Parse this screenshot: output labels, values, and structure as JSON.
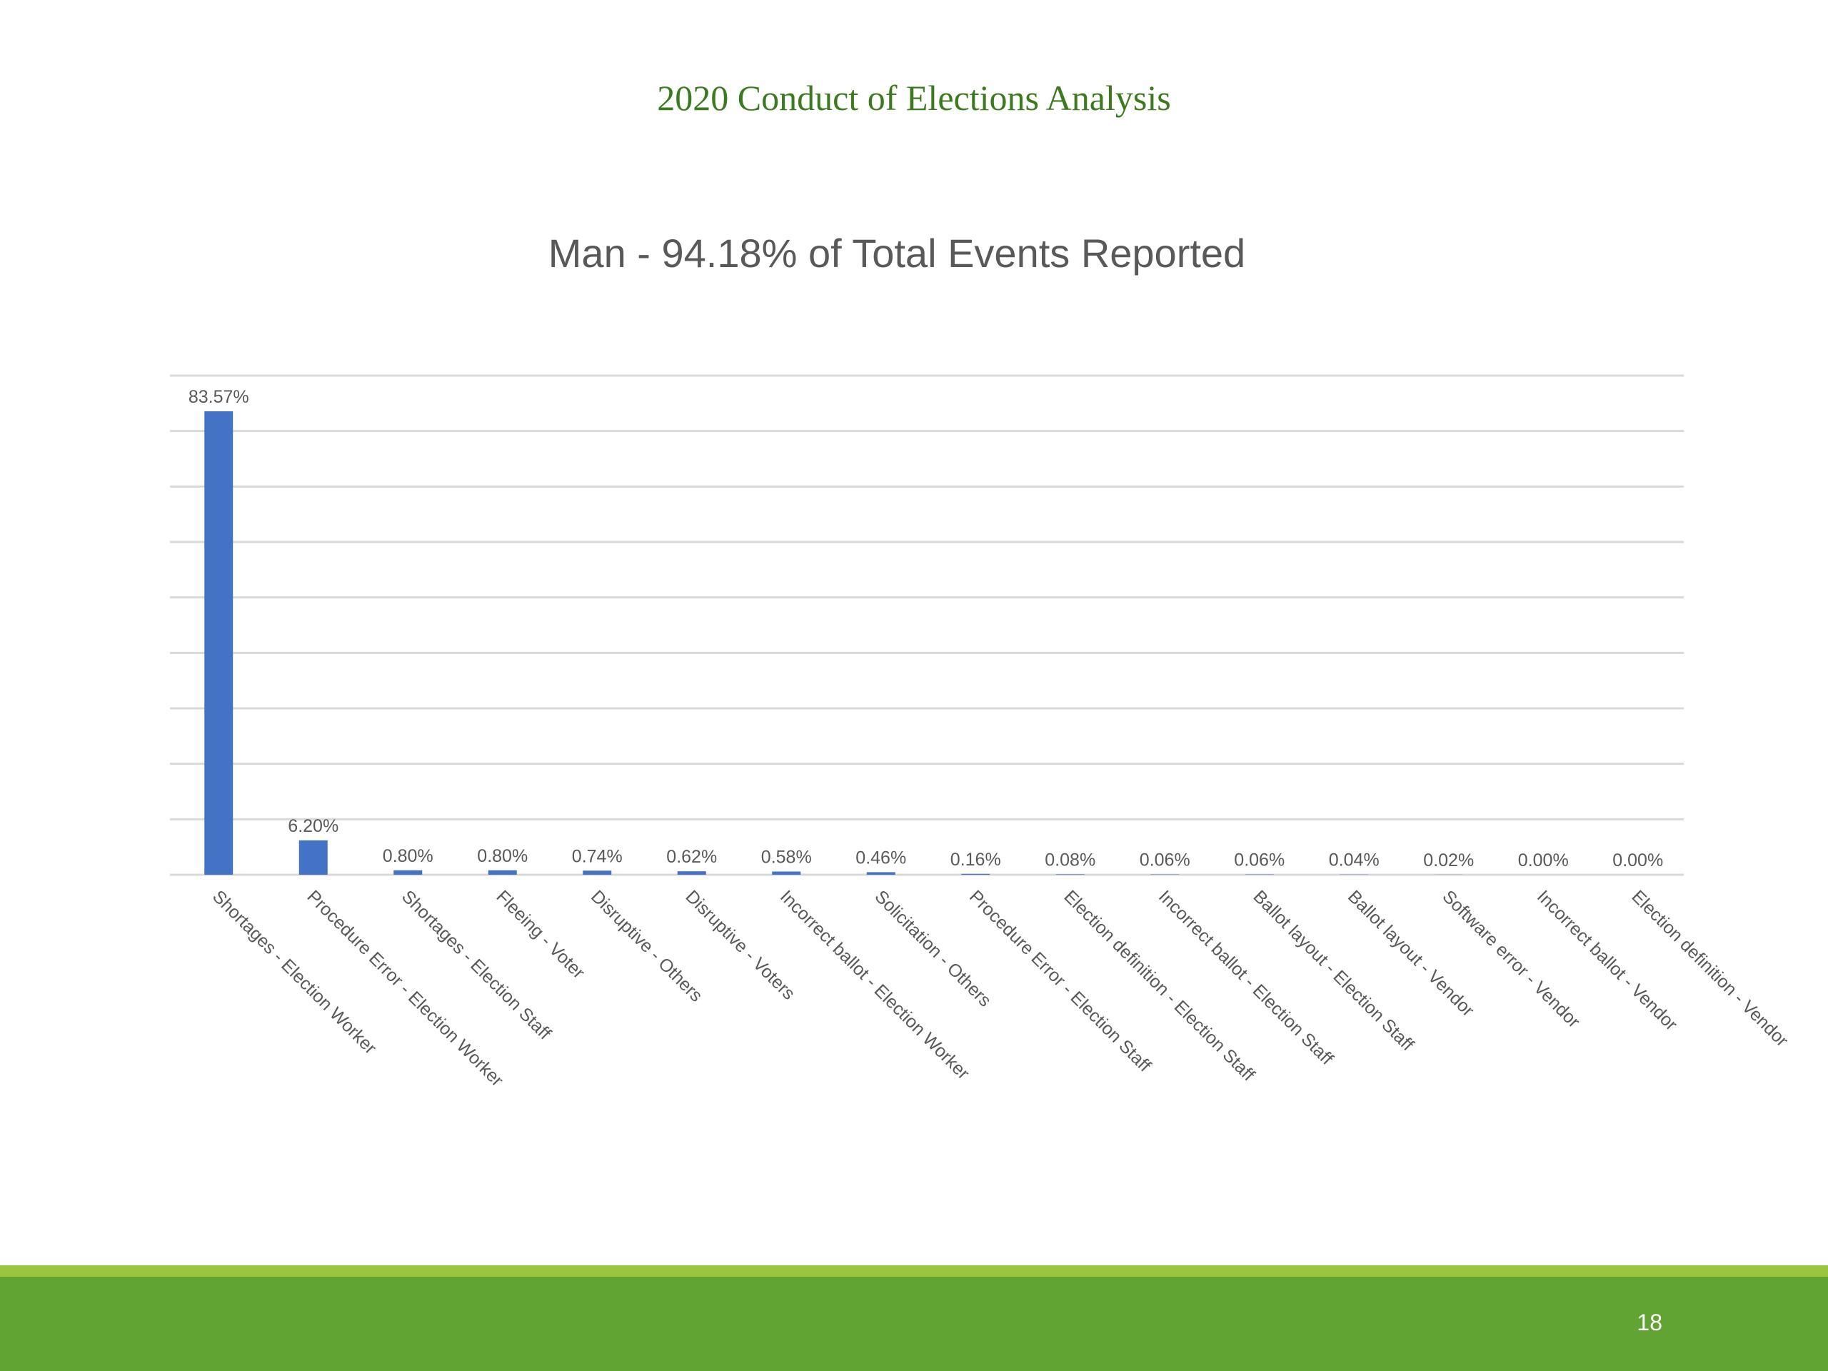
{
  "header": {
    "title": "2020 Conduct of Elections Analysis"
  },
  "chart_data": {
    "type": "bar",
    "title": "Man - 94.18% of Total Events Reported",
    "categories": [
      "Shortages - Election Worker",
      "Procedure Error - Election Worker",
      "Shortages - Election Staff",
      "Fleeing - Voter",
      "Disruptive - Others",
      "Disruptive - Voters",
      "Incorrect ballot - Election Worker",
      "Solicitation - Others",
      "Procedure Error - Election Staff",
      "Election definition - Election Staff",
      "Incorrect ballot - Election Staff",
      "Ballot layout - Election Staff",
      "Ballot layout - Vendor",
      "Software error - Vendor",
      "Incorrect ballot - Vendor",
      "Election definition - Vendor"
    ],
    "values": [
      83.57,
      6.2,
      0.8,
      0.8,
      0.74,
      0.62,
      0.58,
      0.46,
      0.16,
      0.08,
      0.06,
      0.06,
      0.04,
      0.02,
      0.0,
      0.0
    ],
    "data_labels": [
      "83.57%",
      "6.20%",
      "0.80%",
      "0.80%",
      "0.74%",
      "0.62%",
      "0.58%",
      "0.46%",
      "0.16%",
      "0.08%",
      "0.06%",
      "0.06%",
      "0.04%",
      "0.02%",
      "0.00%",
      "0.00%"
    ],
    "xlabel": "",
    "ylabel": "",
    "ylim": [
      0,
      90
    ],
    "grid": true,
    "gridlines": 9,
    "bar_color": "#4472c4",
    "grid_color": "#d9d9d9"
  },
  "footer": {
    "page_number": "18"
  }
}
